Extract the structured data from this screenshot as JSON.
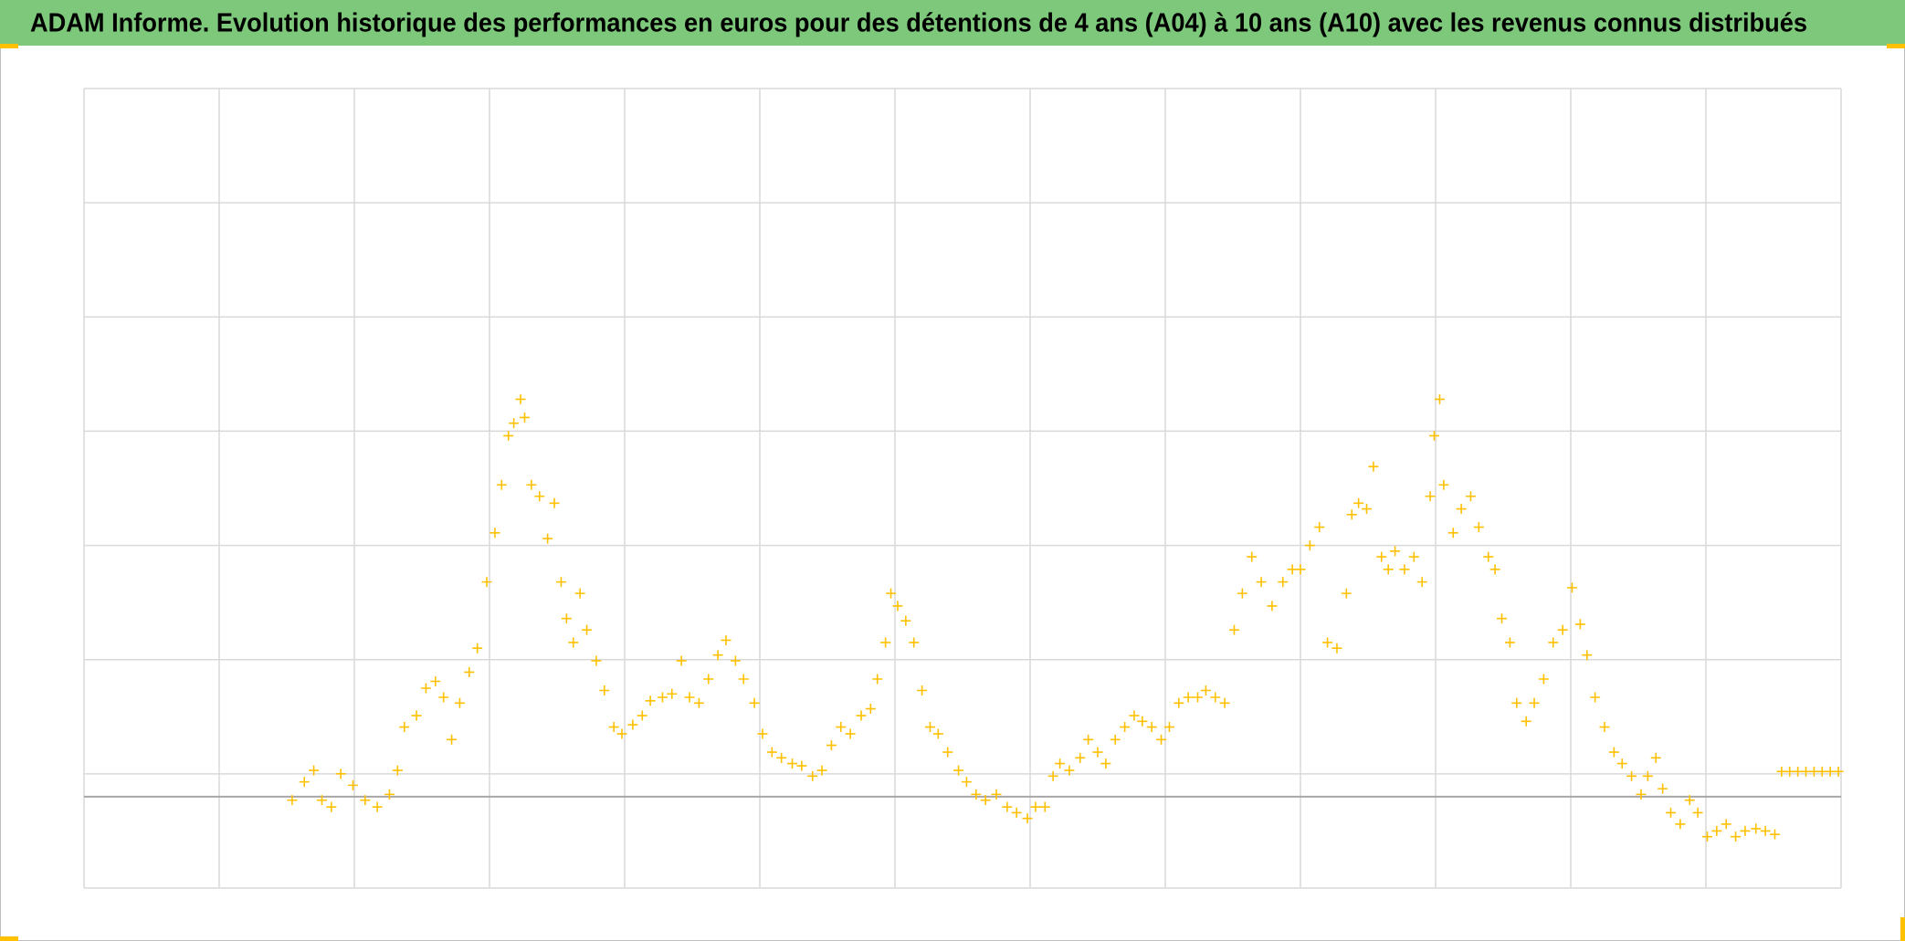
{
  "chart_data": {
    "type": "scatter",
    "title": "ADAM Informe. Evolution historique des performances en euros pour des détentions de 4 ans (A04) à 10 ans (A10) avec les revenus connus distribués",
    "marker": "+",
    "grid": true,
    "xlim": [
      0,
      13
    ],
    "xticks": [
      0,
      1,
      2,
      3,
      4,
      5,
      6,
      7,
      8,
      9,
      10,
      11,
      12,
      13
    ],
    "ylim": [
      -0.8,
      6.2
    ],
    "yticks": [
      -0.8,
      0.2,
      1.2,
      2.2,
      3.2,
      4.2,
      5.2,
      6.2
    ],
    "series": [
      {
        "color": "#ffc000",
        "x": [
          1.54,
          1.63,
          1.7,
          1.76,
          1.83,
          1.9,
          1.99,
          2.08,
          2.17,
          2.26,
          2.32,
          2.37,
          2.46,
          2.53,
          2.6,
          2.66,
          2.72,
          2.78,
          2.85,
          2.91,
          2.98,
          3.04,
          3.09,
          3.14,
          3.18,
          3.23,
          3.26,
          3.31,
          3.37,
          3.43,
          3.48,
          3.53,
          3.57,
          3.62,
          3.67,
          3.72,
          3.79,
          3.85,
          3.92,
          3.98,
          4.06,
          4.13,
          4.19,
          4.28,
          4.35,
          4.42,
          4.48,
          4.55,
          4.62,
          4.69,
          4.75,
          4.82,
          4.88,
          4.96,
          5.02,
          5.09,
          5.16,
          5.24,
          5.31,
          5.39,
          5.46,
          5.53,
          5.6,
          5.67,
          5.75,
          5.82,
          5.87,
          5.93,
          5.97,
          6.02,
          6.08,
          6.14,
          6.2,
          6.26,
          6.32,
          6.39,
          6.47,
          6.53,
          6.6,
          6.67,
          6.75,
          6.83,
          6.9,
          6.98,
          7.04,
          7.11,
          7.17,
          7.22,
          7.29,
          7.37,
          7.43,
          7.5,
          7.56,
          7.63,
          7.7,
          7.77,
          7.83,
          7.9,
          7.97,
          8.03,
          8.1,
          8.17,
          8.24,
          8.3,
          8.37,
          8.44,
          8.51,
          8.57,
          8.64,
          8.71,
          8.79,
          8.87,
          8.94,
          9.0,
          9.07,
          9.14,
          9.2,
          9.27,
          9.34,
          9.38,
          9.43,
          9.49,
          9.54,
          9.6,
          9.65,
          9.7,
          9.77,
          9.84,
          9.9,
          9.96,
          9.99,
          10.03,
          10.06,
          10.13,
          10.19,
          10.26,
          10.32,
          10.39,
          10.44,
          10.49,
          10.55,
          10.6,
          10.67,
          10.73,
          10.8,
          10.87,
          10.94,
          11.01,
          11.07,
          11.12,
          11.18,
          11.25,
          11.32,
          11.38,
          11.45,
          11.52,
          11.57,
          11.63,
          11.68,
          11.74,
          11.81,
          11.88,
          11.94,
          12.01,
          12.08,
          12.15,
          12.22,
          12.29,
          12.37,
          12.44,
          12.51,
          12.56,
          12.62,
          12.68,
          12.74,
          12.8,
          12.86,
          12.92,
          12.98
        ],
        "values": [
          -0.03,
          0.13,
          0.23,
          -0.03,
          -0.09,
          0.2,
          0.1,
          -0.03,
          -0.09,
          0.02,
          0.23,
          0.61,
          0.71,
          0.95,
          1.01,
          0.87,
          0.5,
          0.82,
          1.09,
          1.3,
          1.88,
          2.31,
          2.73,
          3.16,
          3.27,
          3.48,
          3.32,
          2.73,
          2.63,
          2.26,
          2.57,
          1.88,
          1.56,
          1.35,
          1.78,
          1.46,
          1.19,
          0.93,
          0.61,
          0.55,
          0.63,
          0.71,
          0.84,
          0.87,
          0.9,
          1.19,
          0.87,
          0.82,
          1.03,
          1.24,
          1.37,
          1.19,
          1.03,
          0.82,
          0.55,
          0.39,
          0.34,
          0.29,
          0.27,
          0.18,
          0.23,
          0.45,
          0.61,
          0.55,
          0.71,
          0.77,
          1.03,
          1.35,
          1.78,
          1.67,
          1.54,
          1.35,
          0.93,
          0.61,
          0.55,
          0.39,
          0.23,
          0.13,
          0.02,
          -0.03,
          0.02,
          -0.09,
          -0.14,
          -0.19,
          -0.09,
          -0.09,
          0.18,
          0.29,
          0.23,
          0.34,
          0.5,
          0.39,
          0.29,
          0.5,
          0.61,
          0.71,
          0.66,
          0.61,
          0.5,
          0.61,
          0.82,
          0.87,
          0.87,
          0.93,
          0.87,
          0.82,
          1.46,
          1.78,
          2.1,
          1.88,
          1.67,
          1.88,
          1.99,
          1.99,
          2.2,
          2.36,
          1.35,
          1.3,
          1.78,
          2.47,
          2.57,
          2.52,
          2.89,
          2.1,
          1.99,
          2.15,
          1.99,
          2.1,
          1.88,
          2.63,
          3.16,
          3.48,
          2.73,
          2.31,
          2.52,
          2.63,
          2.36,
          2.1,
          1.99,
          1.56,
          1.35,
          0.82,
          0.66,
          0.82,
          1.03,
          1.35,
          1.46,
          1.83,
          1.51,
          1.24,
          0.87,
          0.61,
          0.39,
          0.29,
          0.18,
          0.02,
          0.18,
          0.34,
          0.07,
          -0.14,
          -0.24,
          -0.03,
          -0.14,
          -0.35,
          -0.3,
          -0.24,
          -0.35,
          -0.3,
          -0.28,
          -0.3,
          -0.33,
          0.22,
          0.22,
          0.22,
          0.22,
          0.22,
          0.22,
          0.22,
          0.22
        ]
      }
    ]
  }
}
